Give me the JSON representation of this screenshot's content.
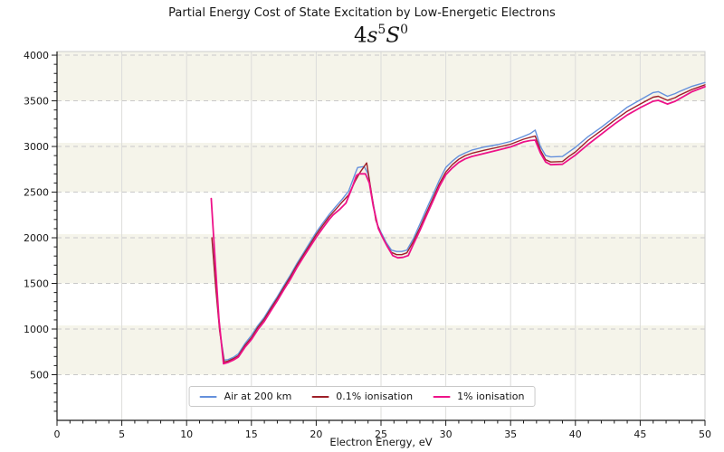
{
  "title": "Partial Energy Cost of State Excitation by Low-Energetic Electrons",
  "subtitle": {
    "num": "4",
    "orbital": "s",
    "multiplicity": "5",
    "term": "S",
    "parity": "0"
  },
  "style": {
    "band_color": "#f5f4ea",
    "hgrid_color": "#c9c9c9",
    "vgrid_color": "#dcdcda",
    "spine_dark": "#1a1a1a",
    "spine_light": "#cccccc"
  },
  "chart_data": {
    "type": "line",
    "title": "Partial Energy Cost of State Excitation by Low-Energetic Electrons",
    "subtitle_notation": "4s 5S0 (spectroscopic term)",
    "xlabel": "Electron Energy, eV",
    "ylabel": "",
    "xlim": [
      0,
      50
    ],
    "ylim": [
      0,
      4040
    ],
    "x_major_ticks": [
      0,
      5,
      10,
      15,
      20,
      25,
      30,
      35,
      40,
      45,
      50
    ],
    "y_major_ticks": [
      500,
      1000,
      1500,
      2000,
      2500,
      3000,
      3500,
      4000
    ],
    "x_minor_step": 1,
    "y_minor_step": 100,
    "grid": {
      "horizontal": "dashed",
      "vertical": "solid",
      "background_bands": "alternating 500-unit stripes"
    },
    "legend_position": "bottom-center",
    "series": [
      {
        "name": "Air at 200 km",
        "color": "#6490dc",
        "width": 1.4,
        "points": [
          [
            12.0,
            1930
          ],
          [
            12.3,
            1400
          ],
          [
            12.6,
            950
          ],
          [
            12.9,
            660
          ],
          [
            13.2,
            665
          ],
          [
            13.6,
            690
          ],
          [
            14,
            730
          ],
          [
            14.5,
            840
          ],
          [
            15,
            930
          ],
          [
            15.5,
            1040
          ],
          [
            16,
            1130
          ],
          [
            16.5,
            1245
          ],
          [
            17,
            1355
          ],
          [
            17.5,
            1475
          ],
          [
            18,
            1590
          ],
          [
            18.5,
            1715
          ],
          [
            19,
            1830
          ],
          [
            19.5,
            1945
          ],
          [
            20,
            2060
          ],
          [
            20.5,
            2160
          ],
          [
            21,
            2255
          ],
          [
            21.5,
            2340
          ],
          [
            22,
            2420
          ],
          [
            22.5,
            2510
          ],
          [
            23,
            2700
          ],
          [
            23.2,
            2770
          ],
          [
            23.7,
            2780
          ],
          [
            24,
            2700
          ],
          [
            24.3,
            2450
          ],
          [
            24.7,
            2150
          ],
          [
            25,
            2060
          ],
          [
            25.4,
            1950
          ],
          [
            25.8,
            1865
          ],
          [
            26.2,
            1850
          ],
          [
            26.6,
            1850
          ],
          [
            27,
            1865
          ],
          [
            27.5,
            1990
          ],
          [
            28,
            2150
          ],
          [
            28.5,
            2310
          ],
          [
            29,
            2470
          ],
          [
            29.5,
            2630
          ],
          [
            30,
            2770
          ],
          [
            30.5,
            2840
          ],
          [
            31,
            2895
          ],
          [
            31.5,
            2930
          ],
          [
            32,
            2960
          ],
          [
            33,
            2995
          ],
          [
            34,
            3020
          ],
          [
            35,
            3055
          ],
          [
            36,
            3110
          ],
          [
            36.5,
            3140
          ],
          [
            36.9,
            3180
          ],
          [
            37.3,
            3000
          ],
          [
            37.7,
            2900
          ],
          [
            38.1,
            2885
          ],
          [
            39,
            2890
          ],
          [
            39.5,
            2940
          ],
          [
            40,
            2990
          ],
          [
            41,
            3110
          ],
          [
            42,
            3210
          ],
          [
            43,
            3320
          ],
          [
            44,
            3430
          ],
          [
            45,
            3510
          ],
          [
            46,
            3590
          ],
          [
            46.4,
            3600
          ],
          [
            47.1,
            3550
          ],
          [
            47.7,
            3580
          ],
          [
            48,
            3600
          ],
          [
            49,
            3660
          ],
          [
            50,
            3700
          ]
        ]
      },
      {
        "name": "0.1% ionisation",
        "color": "#9e1f28",
        "width": 1.4,
        "points": [
          [
            11.95,
            2000
          ],
          [
            12.25,
            1450
          ],
          [
            12.55,
            980
          ],
          [
            12.9,
            640
          ],
          [
            13.2,
            650
          ],
          [
            13.6,
            675
          ],
          [
            14,
            710
          ],
          [
            14.5,
            820
          ],
          [
            15,
            905
          ],
          [
            15.5,
            1020
          ],
          [
            16,
            1110
          ],
          [
            16.5,
            1225
          ],
          [
            17,
            1335
          ],
          [
            17.5,
            1455
          ],
          [
            18,
            1570
          ],
          [
            18.5,
            1695
          ],
          [
            19,
            1810
          ],
          [
            19.5,
            1920
          ],
          [
            20,
            2035
          ],
          [
            20.5,
            2135
          ],
          [
            21,
            2230
          ],
          [
            21.5,
            2310
          ],
          [
            22,
            2390
          ],
          [
            22.5,
            2470
          ],
          [
            23,
            2620
          ],
          [
            23.4,
            2720
          ],
          [
            23.9,
            2820
          ],
          [
            24.2,
            2550
          ],
          [
            24.6,
            2190
          ],
          [
            25,
            2040
          ],
          [
            25.4,
            1930
          ],
          [
            25.8,
            1840
          ],
          [
            26.2,
            1815
          ],
          [
            26.6,
            1815
          ],
          [
            27,
            1835
          ],
          [
            27.5,
            1960
          ],
          [
            28,
            2110
          ],
          [
            28.5,
            2270
          ],
          [
            29,
            2430
          ],
          [
            29.5,
            2590
          ],
          [
            30,
            2720
          ],
          [
            30.5,
            2800
          ],
          [
            31,
            2860
          ],
          [
            31.5,
            2900
          ],
          [
            32,
            2925
          ],
          [
            33,
            2960
          ],
          [
            34,
            2990
          ],
          [
            35,
            3025
          ],
          [
            36,
            3080
          ],
          [
            36.5,
            3100
          ],
          [
            36.9,
            3115
          ],
          [
            37.3,
            2960
          ],
          [
            37.7,
            2855
          ],
          [
            38.1,
            2830
          ],
          [
            39,
            2835
          ],
          [
            39.5,
            2890
          ],
          [
            40,
            2940
          ],
          [
            41,
            3070
          ],
          [
            42,
            3175
          ],
          [
            43,
            3285
          ],
          [
            44,
            3385
          ],
          [
            45,
            3465
          ],
          [
            46,
            3540
          ],
          [
            46.4,
            3550
          ],
          [
            47.1,
            3505
          ],
          [
            47.7,
            3535
          ],
          [
            48,
            3560
          ],
          [
            49,
            3625
          ],
          [
            50,
            3675
          ]
        ]
      },
      {
        "name": "1% ionisation",
        "color": "#ee1289",
        "width": 1.8,
        "points": [
          [
            11.9,
            2430
          ],
          [
            12.2,
            1750
          ],
          [
            12.5,
            1100
          ],
          [
            12.85,
            620
          ],
          [
            13.2,
            635
          ],
          [
            13.6,
            660
          ],
          [
            14,
            695
          ],
          [
            14.5,
            800
          ],
          [
            15,
            885
          ],
          [
            15.5,
            995
          ],
          [
            16,
            1085
          ],
          [
            16.5,
            1200
          ],
          [
            17,
            1310
          ],
          [
            17.5,
            1430
          ],
          [
            18,
            1545
          ],
          [
            18.5,
            1670
          ],
          [
            19,
            1785
          ],
          [
            19.5,
            1895
          ],
          [
            20,
            2005
          ],
          [
            20.5,
            2105
          ],
          [
            21,
            2200
          ],
          [
            21.3,
            2250
          ],
          [
            21.8,
            2310
          ],
          [
            22.3,
            2380
          ],
          [
            22.8,
            2560
          ],
          [
            23.1,
            2680
          ],
          [
            23.3,
            2700
          ],
          [
            23.8,
            2700
          ],
          [
            24.1,
            2600
          ],
          [
            24.4,
            2350
          ],
          [
            24.8,
            2100
          ],
          [
            25.2,
            1980
          ],
          [
            25.5,
            1900
          ],
          [
            25.9,
            1805
          ],
          [
            26.3,
            1780
          ],
          [
            26.7,
            1785
          ],
          [
            27.1,
            1805
          ],
          [
            27.5,
            1930
          ],
          [
            28,
            2080
          ],
          [
            28.5,
            2240
          ],
          [
            29,
            2400
          ],
          [
            29.5,
            2560
          ],
          [
            30,
            2690
          ],
          [
            30.5,
            2765
          ],
          [
            31,
            2825
          ],
          [
            31.5,
            2865
          ],
          [
            32,
            2890
          ],
          [
            33,
            2925
          ],
          [
            34,
            2960
          ],
          [
            35,
            2995
          ],
          [
            36,
            3050
          ],
          [
            36.5,
            3065
          ],
          [
            36.9,
            3070
          ],
          [
            37.3,
            2930
          ],
          [
            37.7,
            2830
          ],
          [
            38.1,
            2800
          ],
          [
            39,
            2805
          ],
          [
            39.5,
            2855
          ],
          [
            40,
            2905
          ],
          [
            41,
            3025
          ],
          [
            42,
            3135
          ],
          [
            43,
            3245
          ],
          [
            44,
            3345
          ],
          [
            45,
            3425
          ],
          [
            46,
            3495
          ],
          [
            46.4,
            3505
          ],
          [
            47.1,
            3465
          ],
          [
            47.7,
            3495
          ],
          [
            48,
            3520
          ],
          [
            49,
            3600
          ],
          [
            50,
            3655
          ]
        ]
      }
    ]
  }
}
